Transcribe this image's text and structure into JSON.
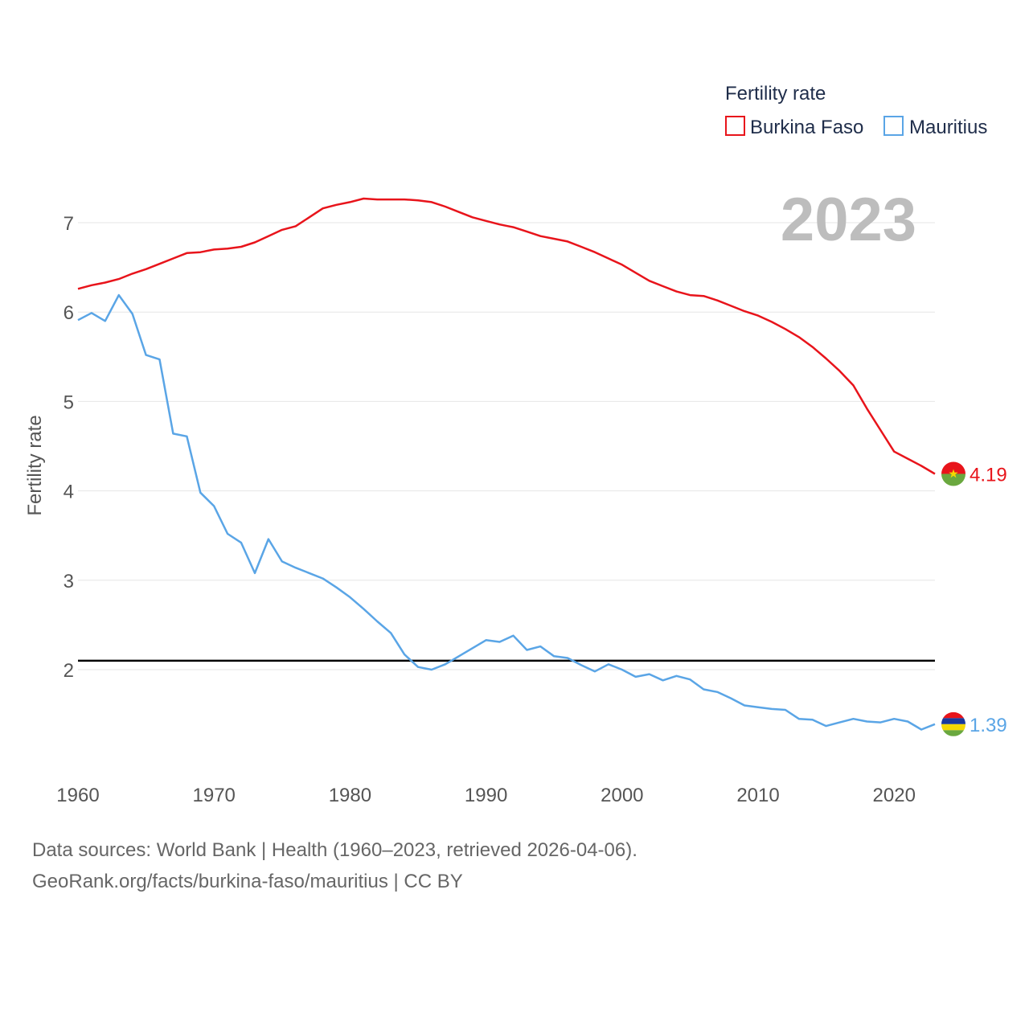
{
  "chart_data": {
    "type": "line",
    "legend_title": "Fertility rate",
    "ylabel": "Fertility rate",
    "year_label": "2023",
    "ylim": [
      1.0,
      7.6
    ],
    "xlim": [
      1960,
      2023
    ],
    "yticks": [
      "2",
      "3",
      "4",
      "5",
      "6",
      "7"
    ],
    "xticks": [
      "1960",
      "1970",
      "1980",
      "1990",
      "2000",
      "2010",
      "2020"
    ],
    "reference_line": 2.1,
    "x": [
      1960,
      1961,
      1962,
      1963,
      1964,
      1965,
      1966,
      1967,
      1968,
      1969,
      1970,
      1971,
      1972,
      1973,
      1974,
      1975,
      1976,
      1977,
      1978,
      1979,
      1980,
      1981,
      1982,
      1983,
      1984,
      1985,
      1986,
      1987,
      1988,
      1989,
      1990,
      1991,
      1992,
      1993,
      1994,
      1995,
      1996,
      1997,
      1998,
      1999,
      2000,
      2001,
      2002,
      2003,
      2004,
      2005,
      2006,
      2007,
      2008,
      2009,
      2010,
      2011,
      2012,
      2013,
      2014,
      2015,
      2016,
      2017,
      2018,
      2019,
      2020,
      2021,
      2022,
      2023
    ],
    "series": [
      {
        "name": "Burkina Faso",
        "color": "#e8141b",
        "end_label": "4.19",
        "flag": "burkina-faso-flag",
        "values": [
          6.26,
          6.3,
          6.33,
          6.37,
          6.43,
          6.48,
          6.54,
          6.6,
          6.66,
          6.67,
          6.7,
          6.71,
          6.73,
          6.78,
          6.85,
          6.92,
          6.96,
          7.06,
          7.16,
          7.2,
          7.23,
          7.27,
          7.26,
          7.26,
          7.26,
          7.25,
          7.23,
          7.18,
          7.12,
          7.06,
          7.02,
          6.98,
          6.95,
          6.9,
          6.85,
          6.82,
          6.79,
          6.73,
          6.67,
          6.6,
          6.53,
          6.44,
          6.35,
          6.29,
          6.23,
          6.19,
          6.18,
          6.13,
          6.07,
          6.01,
          5.96,
          5.89,
          5.81,
          5.72,
          5.61,
          5.48,
          5.34,
          5.18,
          4.92,
          4.68,
          4.44,
          4.36,
          4.28,
          4.19
        ]
      },
      {
        "name": "Mauritius",
        "color": "#5aa5e6",
        "end_label": "1.39",
        "flag": "mauritius-flag",
        "values": [
          5.91,
          5.99,
          5.9,
          6.19,
          5.98,
          5.52,
          5.47,
          4.64,
          4.61,
          3.98,
          3.83,
          3.52,
          3.42,
          3.08,
          3.46,
          3.21,
          3.14,
          3.08,
          3.02,
          2.92,
          2.81,
          2.68,
          2.54,
          2.41,
          2.17,
          2.03,
          2.0,
          2.06,
          2.15,
          2.24,
          2.33,
          2.31,
          2.38,
          2.22,
          2.26,
          2.15,
          2.13,
          2.05,
          1.98,
          2.06,
          2.0,
          1.92,
          1.95,
          1.88,
          1.93,
          1.89,
          1.78,
          1.75,
          1.68,
          1.6,
          1.58,
          1.56,
          1.55,
          1.45,
          1.44,
          1.37,
          1.41,
          1.45,
          1.42,
          1.41,
          1.45,
          1.42,
          1.33,
          1.39
        ]
      }
    ]
  },
  "footer": {
    "line1": "Data sources: World Bank | Health (1960–2023, retrieved 2026-04-06).",
    "line2": "GeoRank.org/facts/burkina-faso/mauritius | CC BY"
  }
}
